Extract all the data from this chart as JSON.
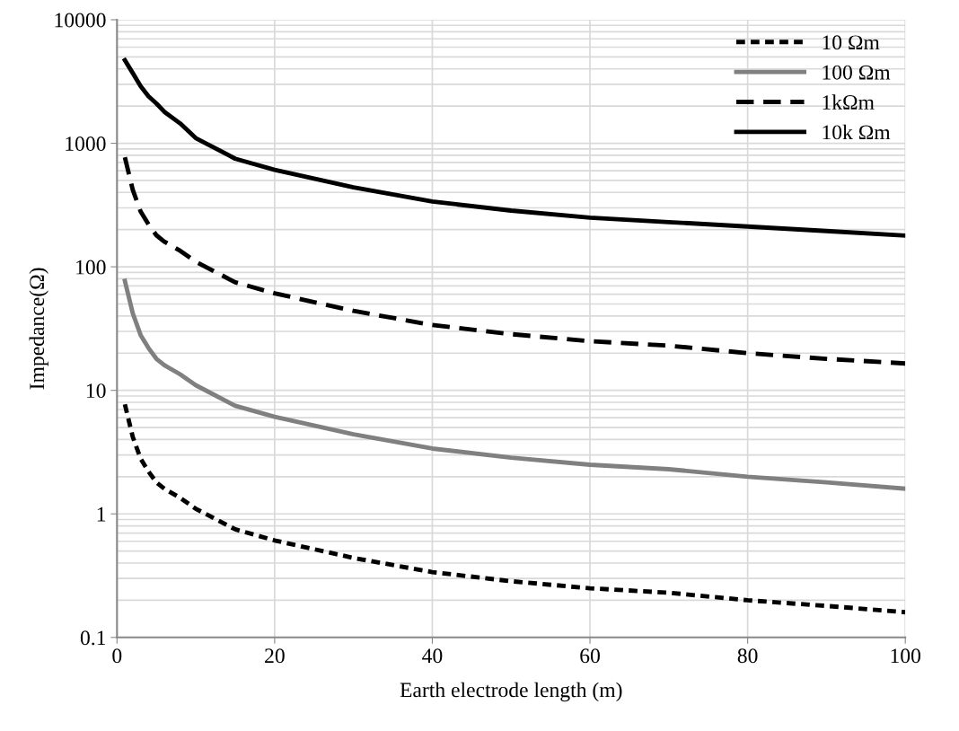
{
  "chart_data": {
    "type": "line",
    "xlabel": "Earth electrode length (m)",
    "ylabel": "Impedance(Ω)",
    "log": "y",
    "grid": true,
    "legend": "top right",
    "x": [
      1,
      2,
      3,
      4,
      5,
      6,
      8,
      10,
      15,
      20,
      30,
      40,
      50,
      60,
      70,
      80,
      90,
      100
    ],
    "xlim": [
      0,
      100
    ],
    "xticks": [
      0,
      20,
      40,
      60,
      80,
      100
    ],
    "ylim": [
      0.1,
      10000
    ],
    "yticks": [
      {
        "value": 0.1,
        "label": "0.1"
      },
      1,
      10,
      100,
      1000,
      10000
    ],
    "series": [
      {
        "name": "10 Ωm",
        "color": "#000000",
        "line_style": "dotted",
        "values": [
          7.7,
          4.2,
          2.8,
          2.2,
          1.8,
          1.6,
          1.35,
          1.1,
          0.75,
          0.61,
          0.44,
          0.338,
          0.285,
          0.25,
          0.23,
          0.2,
          0.18,
          0.16
        ]
      },
      {
        "name": "100 Ωm",
        "color": "#808080",
        "line_style": "solid",
        "values": [
          77,
          42,
          28,
          22,
          18,
          16,
          13.5,
          11,
          7.5,
          6.1,
          4.4,
          3.38,
          2.85,
          2.5,
          2.3,
          2.0,
          1.8,
          1.6
        ]
      },
      {
        "name": "1kΩm",
        "color": "#000000",
        "line_style": "dashed",
        "values": [
          770,
          420,
          280,
          220,
          180,
          160,
          135,
          110,
          75,
          61,
          44,
          33.8,
          28.5,
          25,
          23,
          20,
          18,
          16.5
        ]
      },
      {
        "name": "10k Ωm",
        "color": "#000000",
        "line_style": "solid",
        "values": [
          4700,
          3700,
          2900,
          2400,
          2100,
          1800,
          1450,
          1100,
          750,
          610,
          440,
          338,
          285,
          250,
          230,
          212,
          195,
          179
        ]
      }
    ]
  }
}
